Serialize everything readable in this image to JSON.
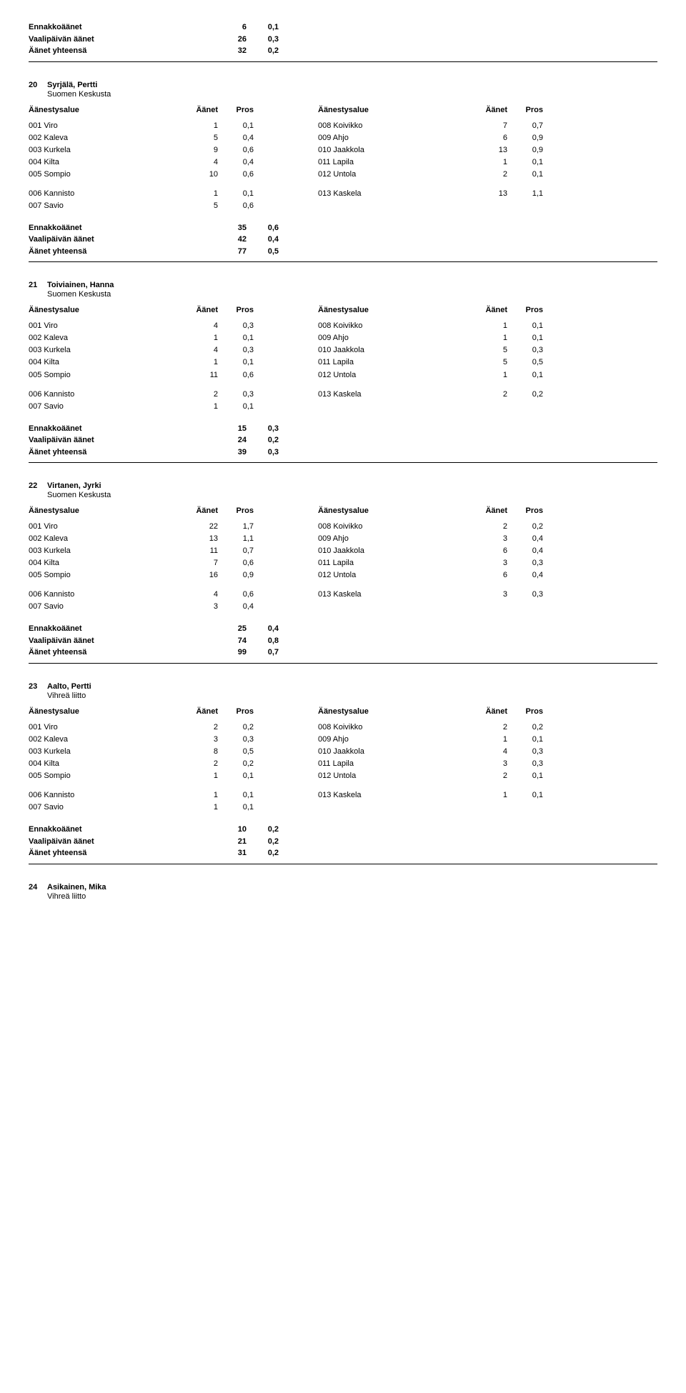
{
  "labels": {
    "colArea": "Äänestysalue",
    "colVotes": "Äänet",
    "colPct": "Pros",
    "preVotes": "Ennakkoäänet",
    "dayVotes": "Vaalipäivän äänet",
    "totalVotes": "Äänet yhteensä"
  },
  "topSummary": {
    "pre": {
      "v": "6",
      "p": "0,1"
    },
    "day": {
      "v": "26",
      "p": "0,3"
    },
    "total": {
      "v": "32",
      "p": "0,2"
    }
  },
  "candidates": [
    {
      "num": "20",
      "name": "Syrjälä, Pertti",
      "party": "Suomen Keskusta",
      "rows": [
        {
          "l": "001 Viro",
          "v": "1",
          "p": "0,1",
          "r": "008 Koivikko",
          "rv": "7",
          "rp": "0,7"
        },
        {
          "l": "002 Kaleva",
          "v": "5",
          "p": "0,4",
          "r": "009 Ahjo",
          "rv": "6",
          "rp": "0,9"
        },
        {
          "l": "003 Kurkela",
          "v": "9",
          "p": "0,6",
          "r": "010 Jaakkola",
          "rv": "13",
          "rp": "0,9"
        },
        {
          "l": "004 Kilta",
          "v": "4",
          "p": "0,4",
          "r": "011 Lapila",
          "rv": "1",
          "rp": "0,1"
        },
        {
          "l": "005 Sompio",
          "v": "10",
          "p": "0,6",
          "r": "012 Untola",
          "rv": "2",
          "rp": "0,1"
        }
      ],
      "rows2": [
        {
          "l": "006 Kannisto",
          "v": "1",
          "p": "0,1",
          "r": "013 Kaskela",
          "rv": "13",
          "rp": "1,1"
        },
        {
          "l": "007 Savio",
          "v": "5",
          "p": "0,6",
          "r": "",
          "rv": "",
          "rp": ""
        }
      ],
      "summary": {
        "pre": {
          "v": "35",
          "p": "0,6"
        },
        "day": {
          "v": "42",
          "p": "0,4"
        },
        "total": {
          "v": "77",
          "p": "0,5"
        }
      }
    },
    {
      "num": "21",
      "name": "Toiviainen, Hanna",
      "party": "Suomen Keskusta",
      "rows": [
        {
          "l": "001 Viro",
          "v": "4",
          "p": "0,3",
          "r": "008 Koivikko",
          "rv": "1",
          "rp": "0,1"
        },
        {
          "l": "002 Kaleva",
          "v": "1",
          "p": "0,1",
          "r": "009 Ahjo",
          "rv": "1",
          "rp": "0,1"
        },
        {
          "l": "003 Kurkela",
          "v": "4",
          "p": "0,3",
          "r": "010 Jaakkola",
          "rv": "5",
          "rp": "0,3"
        },
        {
          "l": "004 Kilta",
          "v": "1",
          "p": "0,1",
          "r": "011 Lapila",
          "rv": "5",
          "rp": "0,5"
        },
        {
          "l": "005 Sompio",
          "v": "11",
          "p": "0,6",
          "r": "012 Untola",
          "rv": "1",
          "rp": "0,1"
        }
      ],
      "rows2": [
        {
          "l": "006 Kannisto",
          "v": "2",
          "p": "0,3",
          "r": "013 Kaskela",
          "rv": "2",
          "rp": "0,2"
        },
        {
          "l": "007 Savio",
          "v": "1",
          "p": "0,1",
          "r": "",
          "rv": "",
          "rp": ""
        }
      ],
      "summary": {
        "pre": {
          "v": "15",
          "p": "0,3"
        },
        "day": {
          "v": "24",
          "p": "0,2"
        },
        "total": {
          "v": "39",
          "p": "0,3"
        }
      }
    },
    {
      "num": "22",
      "name": "Virtanen, Jyrki",
      "party": "Suomen Keskusta",
      "rows": [
        {
          "l": "001 Viro",
          "v": "22",
          "p": "1,7",
          "r": "008 Koivikko",
          "rv": "2",
          "rp": "0,2"
        },
        {
          "l": "002 Kaleva",
          "v": "13",
          "p": "1,1",
          "r": "009 Ahjo",
          "rv": "3",
          "rp": "0,4"
        },
        {
          "l": "003 Kurkela",
          "v": "11",
          "p": "0,7",
          "r": "010 Jaakkola",
          "rv": "6",
          "rp": "0,4"
        },
        {
          "l": "004 Kilta",
          "v": "7",
          "p": "0,6",
          "r": "011 Lapila",
          "rv": "3",
          "rp": "0,3"
        },
        {
          "l": "005 Sompio",
          "v": "16",
          "p": "0,9",
          "r": "012 Untola",
          "rv": "6",
          "rp": "0,4"
        }
      ],
      "rows2": [
        {
          "l": "006 Kannisto",
          "v": "4",
          "p": "0,6",
          "r": "013 Kaskela",
          "rv": "3",
          "rp": "0,3"
        },
        {
          "l": "007 Savio",
          "v": "3",
          "p": "0,4",
          "r": "",
          "rv": "",
          "rp": ""
        }
      ],
      "summary": {
        "pre": {
          "v": "25",
          "p": "0,4"
        },
        "day": {
          "v": "74",
          "p": "0,8"
        },
        "total": {
          "v": "99",
          "p": "0,7"
        }
      }
    },
    {
      "num": "23",
      "name": "Aalto, Pertti",
      "party": "Vihreä liitto",
      "rows": [
        {
          "l": "001 Viro",
          "v": "2",
          "p": "0,2",
          "r": "008 Koivikko",
          "rv": "2",
          "rp": "0,2"
        },
        {
          "l": "002 Kaleva",
          "v": "3",
          "p": "0,3",
          "r": "009 Ahjo",
          "rv": "1",
          "rp": "0,1"
        },
        {
          "l": "003 Kurkela",
          "v": "8",
          "p": "0,5",
          "r": "010 Jaakkola",
          "rv": "4",
          "rp": "0,3"
        },
        {
          "l": "004 Kilta",
          "v": "2",
          "p": "0,2",
          "r": "011 Lapila",
          "rv": "3",
          "rp": "0,3"
        },
        {
          "l": "005 Sompio",
          "v": "1",
          "p": "0,1",
          "r": "012 Untola",
          "rv": "2",
          "rp": "0,1"
        }
      ],
      "rows2": [
        {
          "l": "006 Kannisto",
          "v": "1",
          "p": "0,1",
          "r": "013 Kaskela",
          "rv": "1",
          "rp": "0,1"
        },
        {
          "l": "007 Savio",
          "v": "1",
          "p": "0,1",
          "r": "",
          "rv": "",
          "rp": ""
        }
      ],
      "summary": {
        "pre": {
          "v": "10",
          "p": "0,2"
        },
        "day": {
          "v": "21",
          "p": "0,2"
        },
        "total": {
          "v": "31",
          "p": "0,2"
        }
      }
    }
  ],
  "trailing": {
    "num": "24",
    "name": "Asikainen, Mika",
    "party": "Vihreä liitto"
  }
}
